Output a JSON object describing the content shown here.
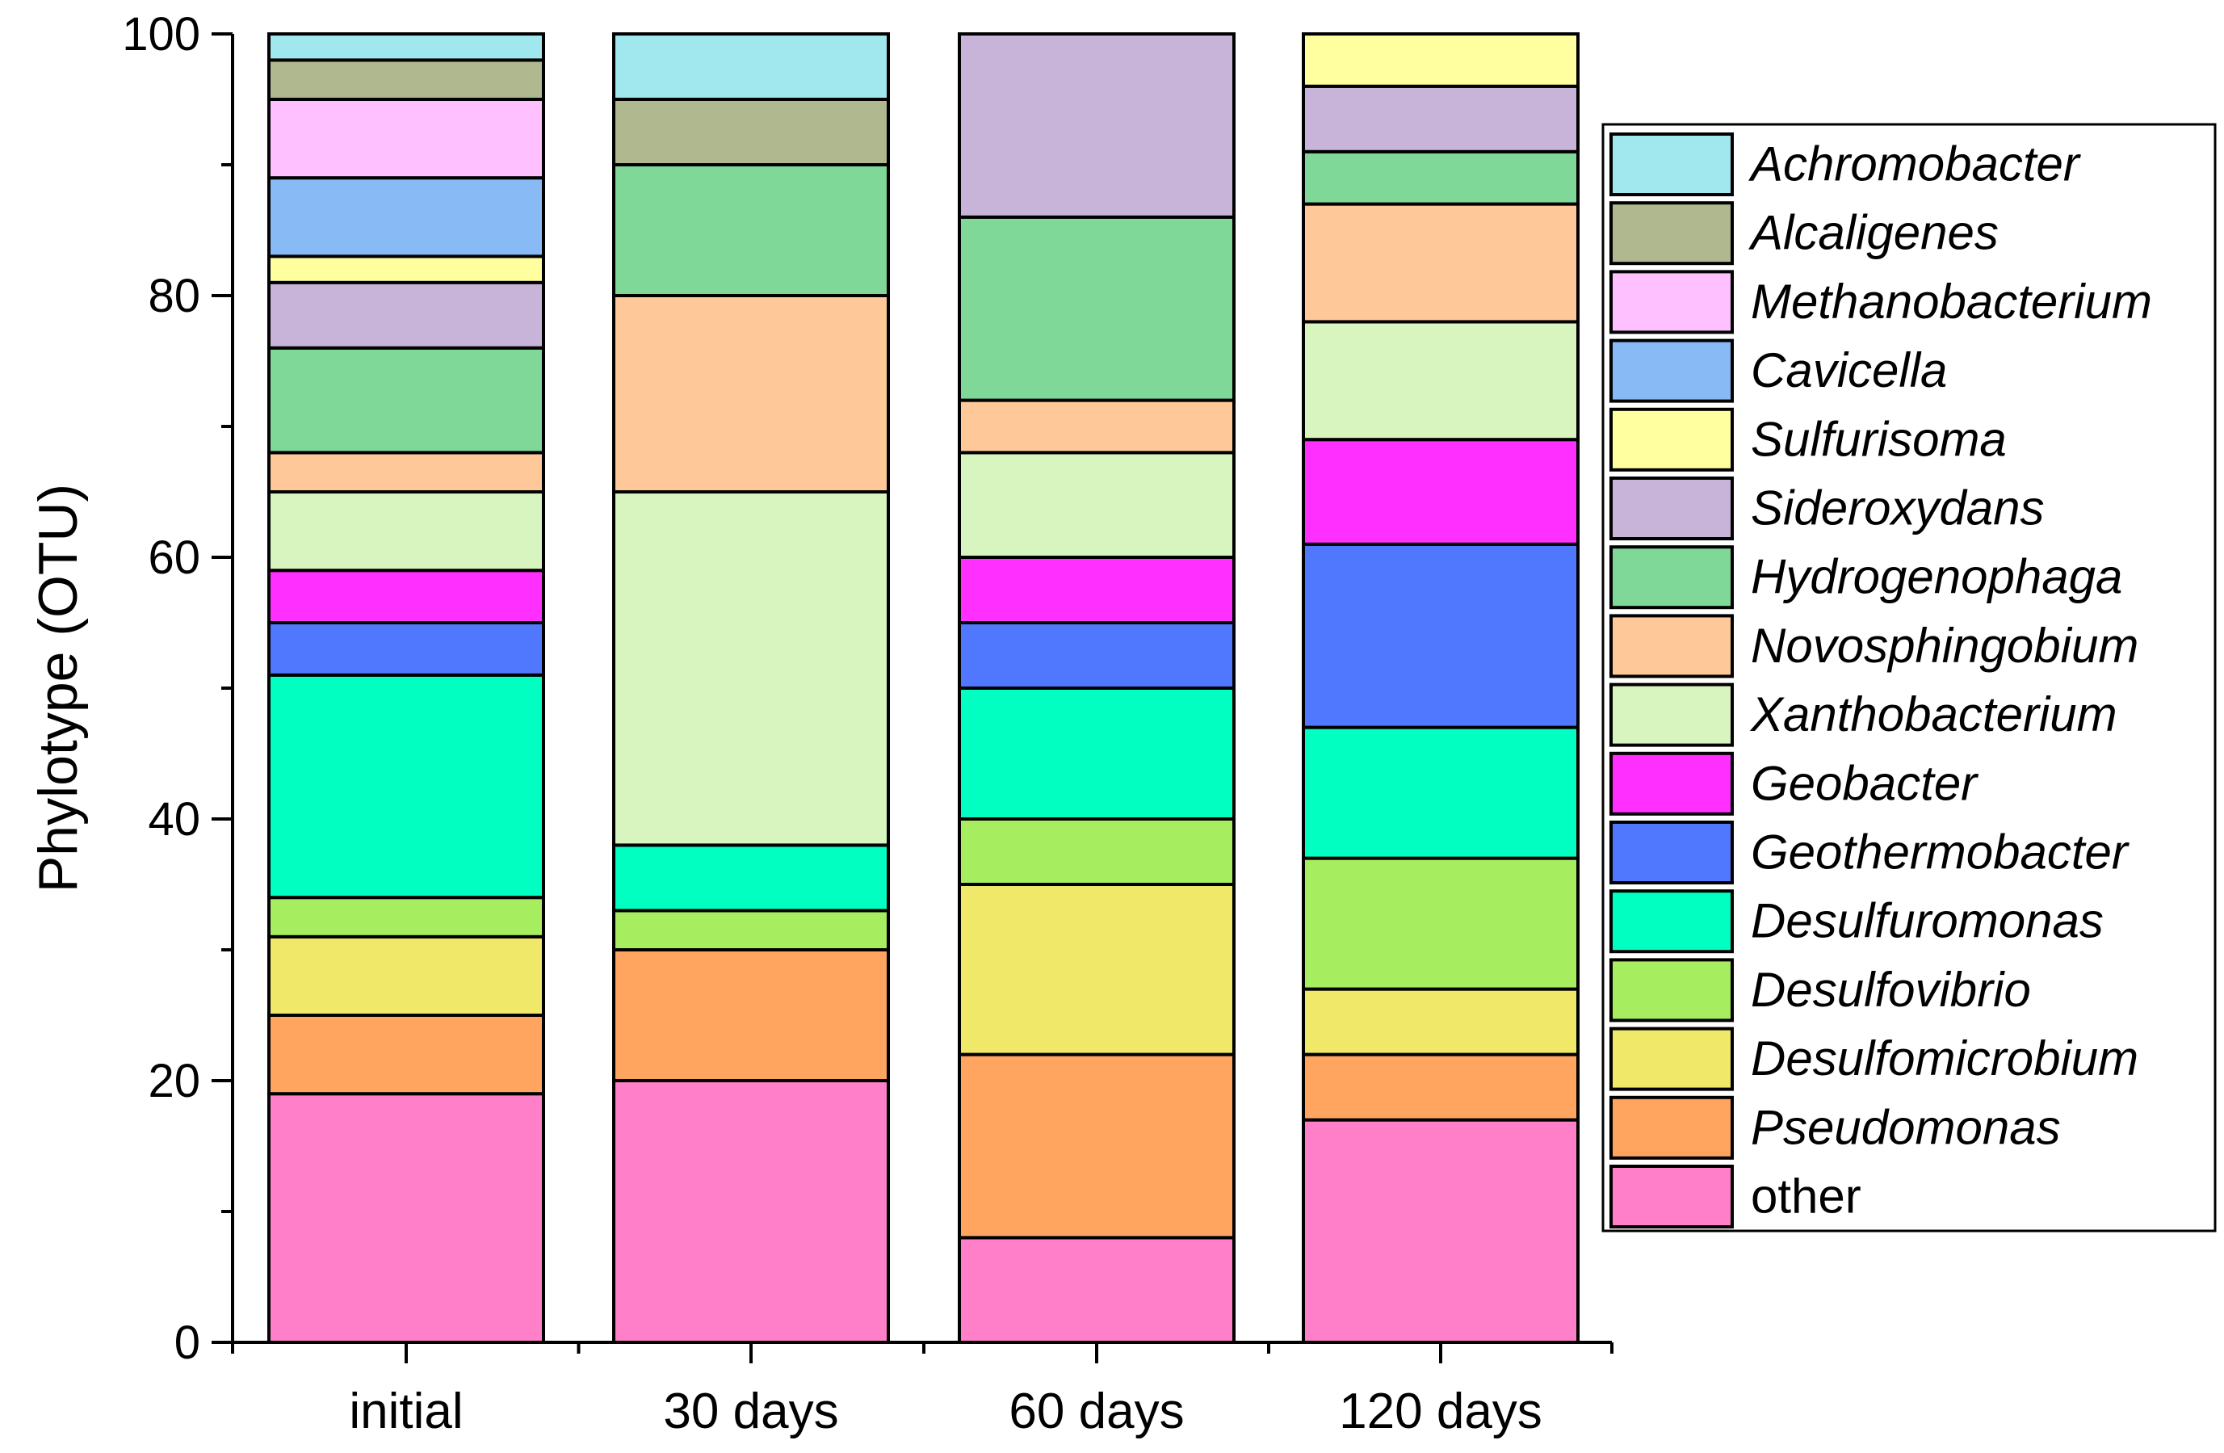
{
  "chart_data": {
    "type": "bar",
    "stacked": true,
    "title": "",
    "xlabel": "",
    "ylabel": "Phylotype (OTU)",
    "ylim": [
      0,
      100
    ],
    "yticks": [
      0,
      20,
      40,
      60,
      80,
      100
    ],
    "categories": [
      "initial",
      "30 days",
      "60 days",
      "120 days"
    ],
    "legend_position": "right",
    "series": [
      {
        "name": "other",
        "color": "#FF80C8",
        "values": [
          19,
          20,
          8,
          17
        ]
      },
      {
        "name": "Pseudomonas",
        "color": "#FFA560",
        "values": [
          6,
          10,
          14,
          5
        ]
      },
      {
        "name": "Desulfomicrobium",
        "color": "#F0E868",
        "values": [
          6,
          0,
          13,
          5
        ]
      },
      {
        "name": "Desulfovibrio",
        "color": "#A6EE60",
        "values": [
          3,
          3,
          5,
          10
        ]
      },
      {
        "name": "Desulfuromonas",
        "color": "#00FFC0",
        "values": [
          17,
          5,
          10,
          10
        ]
      },
      {
        "name": "Geothermobacter",
        "color": "#5078FF",
        "values": [
          4,
          0,
          5,
          14
        ]
      },
      {
        "name": "Geobacter",
        "color": "#FF30FF",
        "values": [
          4,
          0,
          5,
          8
        ]
      },
      {
        "name": "Xanthobacterium",
        "color": "#D8F5C0",
        "values": [
          6,
          27,
          8,
          9
        ]
      },
      {
        "name": "Novosphingobium",
        "color": "#FFC898",
        "values": [
          3,
          15,
          4,
          9
        ]
      },
      {
        "name": "Hydrogenophaga",
        "color": "#80D898",
        "values": [
          8,
          10,
          14,
          4
        ]
      },
      {
        "name": "Sideroxydans",
        "color": "#C8B4D8",
        "values": [
          5,
          0,
          14,
          5
        ]
      },
      {
        "name": "Sulfurisoma",
        "color": "#FFFFA0",
        "values": [
          2,
          0,
          0,
          4
        ]
      },
      {
        "name": "Cavicella",
        "color": "#88BBF5",
        "values": [
          6,
          0,
          0,
          0
        ]
      },
      {
        "name": "Methanobacterium",
        "color": "#FFC0FF",
        "values": [
          6,
          0,
          0,
          0
        ]
      },
      {
        "name": "Alcaligenes",
        "color": "#B0B890",
        "values": [
          3,
          5,
          0,
          0
        ]
      },
      {
        "name": "Achromobacter",
        "color": "#A0E8EE",
        "values": [
          2,
          5,
          0,
          0
        ]
      }
    ],
    "legend_order": [
      "Achromobacter",
      "Alcaligenes",
      "Methanobacterium",
      "Cavicella",
      "Sulfurisoma",
      "Sideroxydans",
      "Hydrogenophaga",
      "Novosphingobium",
      "Xanthobacterium",
      "Geobacter",
      "Geothermobacter",
      "Desulfuromonas",
      "Desulfovibrio",
      "Desulfomicrobium",
      "Pseudomonas",
      "other"
    ]
  }
}
